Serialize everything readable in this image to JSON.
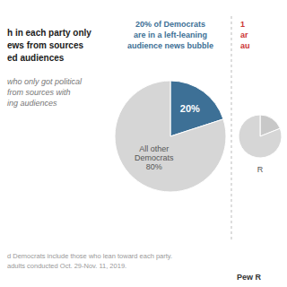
{
  "title": [
    "h in each party only",
    "ews from sources",
    "ed audiences"
  ],
  "subtitle": [
    "who only got political",
    "from sources with",
    "ing audiences"
  ],
  "annotations": [
    "d Democrats include those who lean toward each party.",
    "adults conducted Oct. 29-Nov. 11, 2019.",
    "Pew R"
  ],
  "chart_data": [
    {
      "type": "pie",
      "title": [
        "20% of Democrats",
        "are in a left-leaning",
        "audience news bubble"
      ],
      "values": [
        20,
        80
      ],
      "colors": [
        "#3d7096",
        "#d6d6d6"
      ],
      "data_labels": true,
      "value_labels": [
        "20%",
        "All other\nDemocrats\n80%"
      ]
    },
    {
      "type": "pie",
      "title": [
        "1",
        "ar",
        "au"
      ],
      "values": [
        19,
        81
      ],
      "colors": [
        "#c8c8c8",
        "#d6d6d6"
      ],
      "annotations": [
        "R"
      ]
    }
  ]
}
